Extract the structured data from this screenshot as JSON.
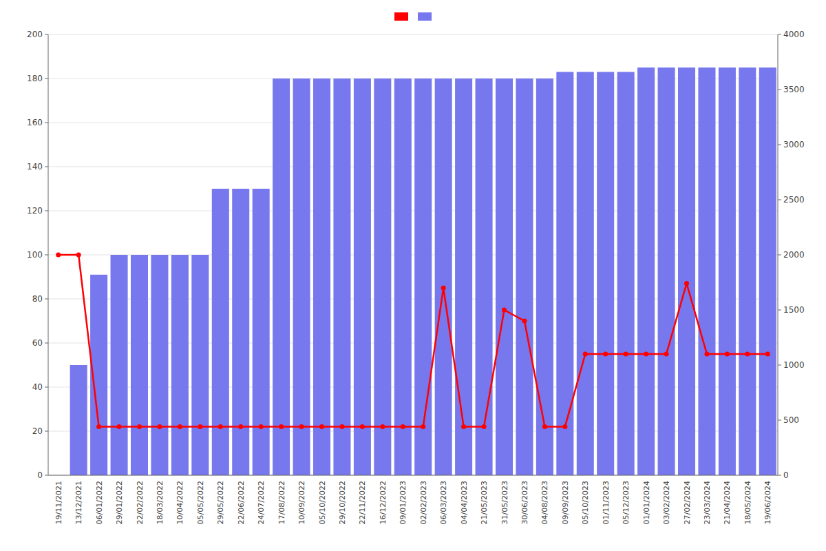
{
  "chart_data": {
    "type": "bar",
    "categories": [
      "19/11/2021",
      "13/12/2021",
      "06/01/2022",
      "29/01/2022",
      "22/02/2022",
      "18/03/2022",
      "10/04/2022",
      "05/05/2022",
      "29/05/2022",
      "22/06/2022",
      "24/07/2022",
      "17/08/2022",
      "10/09/2022",
      "05/10/2022",
      "29/10/2022",
      "22/11/2022",
      "16/12/2022",
      "09/01/2023",
      "02/02/2023",
      "06/03/2023",
      "04/04/2023",
      "21/05/2023",
      "31/05/2023",
      "30/06/2023",
      "04/08/2023",
      "09/09/2023",
      "05/10/2023",
      "01/11/2023",
      "05/12/2023",
      "01/01/2024",
      "03/02/2024",
      "27/02/2024",
      "23/03/2024",
      "21/04/2024",
      "18/05/2024",
      "19/06/2024"
    ],
    "series": [
      {
        "type": "bar",
        "color": "#7777ee",
        "values": [
          0,
          50,
          91,
          100,
          100,
          100,
          100,
          100,
          130,
          130,
          130,
          180,
          180,
          180,
          180,
          180,
          180,
          180,
          180,
          180,
          180,
          180,
          180,
          180,
          180,
          183,
          183,
          183,
          183,
          185,
          185,
          185,
          185,
          185,
          185,
          185
        ]
      },
      {
        "type": "line",
        "color": "#ff0000",
        "marker": "circle",
        "values": [
          100,
          100,
          22,
          22,
          22,
          22,
          22,
          22,
          22,
          22,
          22,
          22,
          22,
          22,
          22,
          22,
          22,
          22,
          22,
          85,
          22,
          22,
          75,
          70,
          22,
          22,
          55,
          55,
          55,
          55,
          55,
          87,
          55,
          55,
          55,
          55
        ]
      }
    ],
    "ylim": [
      0,
      200
    ],
    "yticks": [
      0,
      20,
      40,
      60,
      80,
      100,
      120,
      140,
      160,
      180,
      200
    ],
    "y2lim": [
      0,
      4000
    ],
    "y2ticks": [
      0,
      500,
      1000,
      1500,
      2000,
      2500,
      3000,
      3500,
      4000
    ],
    "grid": true,
    "legend": "top"
  }
}
